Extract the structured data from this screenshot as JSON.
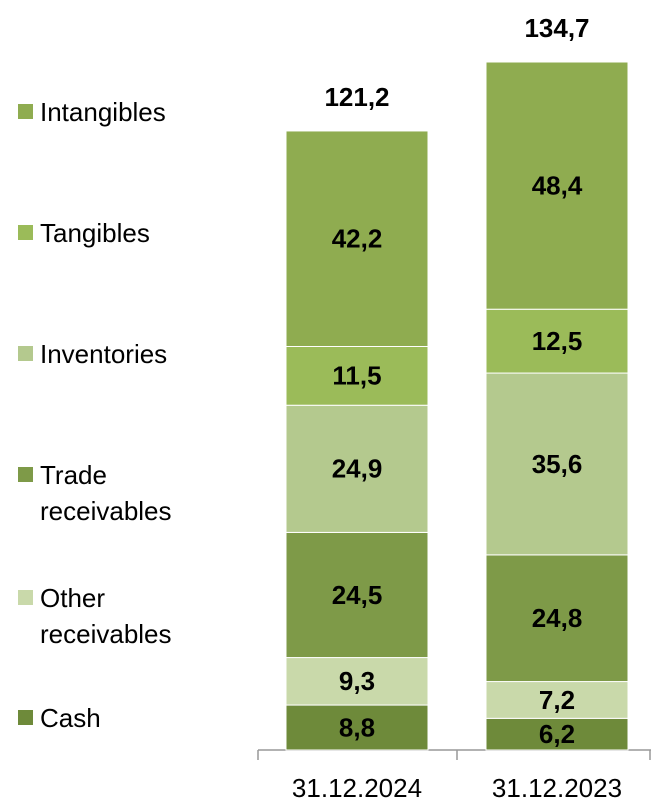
{
  "chart_data": {
    "type": "stacked_bar",
    "categories": [
      "31.12.2024",
      "31.12.2023"
    ],
    "series": [
      {
        "name": "Cash",
        "color": "#6e8a3a",
        "values": [
          8.8,
          6.2
        ],
        "value_labels": [
          "8,8",
          "6,2"
        ]
      },
      {
        "name": "Other receivables",
        "color": "#c9d9aa",
        "values": [
          9.3,
          7.2
        ],
        "value_labels": [
          "9,3",
          "7,2"
        ]
      },
      {
        "name": "Trade receivables",
        "color": "#7e9a48",
        "values": [
          24.5,
          24.8
        ],
        "value_labels": [
          "24,5",
          "24,8"
        ]
      },
      {
        "name": "Inventories",
        "color": "#b4c98e",
        "values": [
          24.9,
          35.6
        ],
        "value_labels": [
          "24,9",
          "35,6"
        ]
      },
      {
        "name": "Tangibles",
        "color": "#9bbb59",
        "values": [
          11.5,
          12.5
        ],
        "value_labels": [
          "11,5",
          "12,5"
        ]
      },
      {
        "name": "Intangibles",
        "color": "#8fac50",
        "values": [
          42.2,
          48.4
        ],
        "value_labels": [
          "42,2",
          "48,4"
        ]
      }
    ],
    "totals": [
      121.2,
      134.7
    ],
    "total_labels": [
      "121,2",
      "134,7"
    ]
  }
}
